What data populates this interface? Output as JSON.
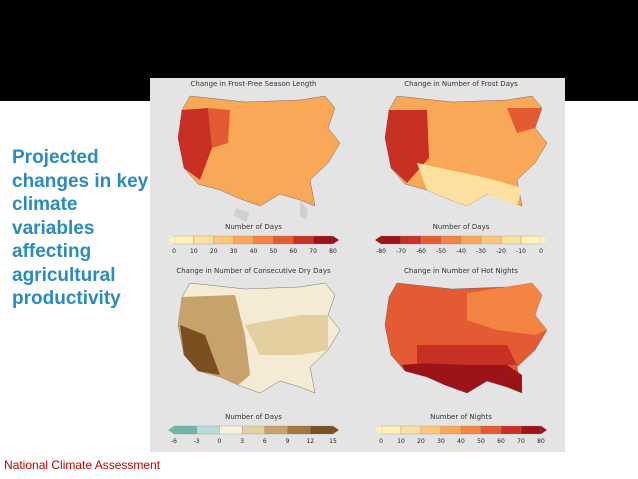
{
  "slide": {
    "title": "Projected changes in key climate variables affecting agricultural productivity",
    "credit": "National Climate Assessment"
  },
  "figure": {
    "panels": [
      {
        "title": "Change in Frost-Free Season Length",
        "legend_title": "Number of Days",
        "ticks": [
          "0",
          "10",
          "20",
          "30",
          "40",
          "50",
          "60",
          "70",
          "80"
        ],
        "colors": [
          "#fff0b8",
          "#fde0a0",
          "#fcc77a",
          "#f9a857",
          "#f38442",
          "#e45b33",
          "#c83023",
          "#9c1418"
        ]
      },
      {
        "title": "Change in Number of Frost Days",
        "legend_title": "Number of Days",
        "ticks": [
          "-80",
          "-70",
          "-60",
          "-50",
          "-40",
          "-30",
          "-20",
          "-10",
          "0"
        ],
        "colors": [
          "#9c1418",
          "#c83023",
          "#e45b33",
          "#f38442",
          "#f9a857",
          "#fcc77a",
          "#fde0a0",
          "#fff0b8"
        ]
      },
      {
        "title": "Change in Number of Consecutive Dry Days",
        "legend_title": "Number of Days",
        "ticks": [
          "-6",
          "-3",
          "0",
          "3",
          "6",
          "9",
          "12",
          "15"
        ],
        "colors": [
          "#6fb7ad",
          "#b7ddd6",
          "#f7f1dc",
          "#e4cfa1",
          "#c7a26a",
          "#a7763d",
          "#7b4f1f"
        ]
      },
      {
        "title": "Change in Number of Hot Nights",
        "legend_title": "Number of Nights",
        "ticks": [
          "0",
          "10",
          "20",
          "30",
          "40",
          "50",
          "60",
          "70",
          "80"
        ],
        "colors": [
          "#fff0b8",
          "#fde0a0",
          "#fcc77a",
          "#f9a857",
          "#f38442",
          "#e45b33",
          "#c83023",
          "#9c1418"
        ]
      }
    ]
  }
}
